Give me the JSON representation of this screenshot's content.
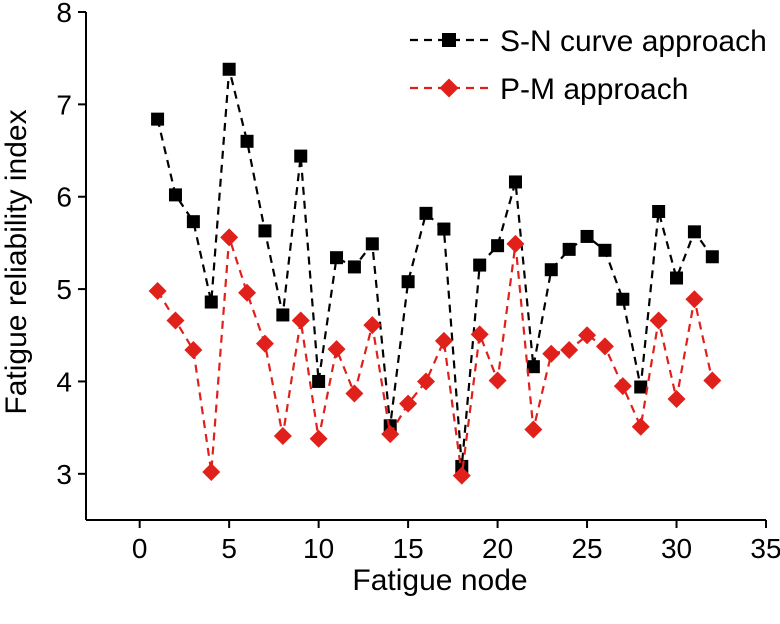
{
  "chart_data": {
    "type": "line",
    "title": "",
    "xlabel": "Fatigue node",
    "ylabel": "Fatigue reliability index",
    "xlim": [
      -3,
      35
    ],
    "ylim": [
      2.5,
      8
    ],
    "xticks": [
      0,
      5,
      10,
      15,
      20,
      25,
      30,
      35
    ],
    "yticks": [
      3,
      4,
      5,
      6,
      7,
      8
    ],
    "grid": false,
    "legend_position": "top-right",
    "x": [
      1,
      2,
      3,
      4,
      5,
      6,
      7,
      8,
      9,
      10,
      11,
      12,
      13,
      14,
      15,
      16,
      17,
      18,
      19,
      20,
      21,
      22,
      23,
      24,
      25,
      26,
      27,
      28,
      29,
      30,
      31,
      32
    ],
    "series": [
      {
        "name": "S-N  curve approach",
        "color": "#000000",
        "marker": "square",
        "values": [
          6.84,
          6.02,
          5.73,
          4.86,
          7.38,
          6.6,
          5.63,
          4.72,
          6.44,
          4.0,
          5.34,
          5.24,
          5.49,
          3.52,
          5.08,
          5.82,
          5.65,
          3.08,
          5.26,
          5.47,
          6.16,
          4.16,
          5.21,
          5.43,
          5.57,
          5.42,
          4.89,
          3.94,
          5.84,
          5.12,
          5.62,
          5.35
        ]
      },
      {
        "name": "P-M  approach",
        "color": "#e0201b",
        "marker": "diamond",
        "values": [
          4.98,
          4.66,
          4.34,
          3.02,
          5.56,
          4.96,
          4.41,
          3.41,
          4.66,
          3.38,
          4.35,
          3.87,
          4.61,
          3.43,
          3.76,
          4.0,
          4.44,
          2.98,
          4.51,
          4.01,
          5.49,
          3.48,
          4.3,
          4.34,
          4.5,
          4.38,
          3.95,
          3.51,
          4.66,
          3.81,
          4.89,
          4.01
        ]
      }
    ]
  }
}
